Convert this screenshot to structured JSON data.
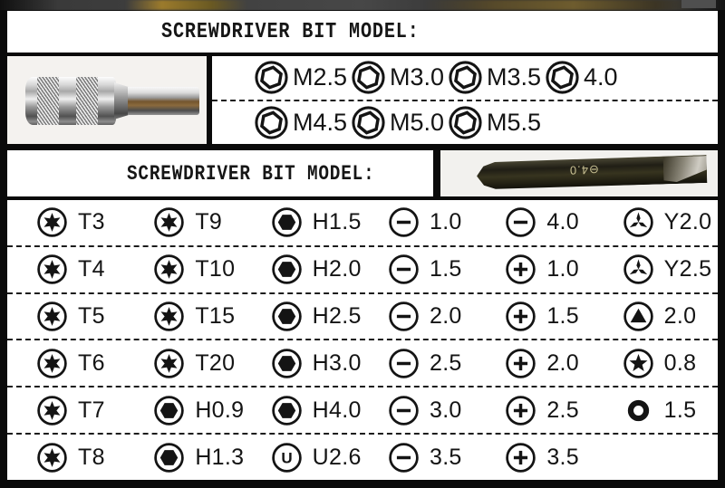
{
  "header_top": {
    "title": "SCREWDRIVER BIT MODEL:"
  },
  "hex_nut_panel": {
    "rows": [
      [
        {
          "icon": "hex-nut-icon",
          "label": "M2.5"
        },
        {
          "icon": "hex-nut-icon",
          "label": "M3.0"
        },
        {
          "icon": "hex-nut-icon",
          "label": "M3.5"
        },
        {
          "icon": "hex-nut-icon",
          "label": "4.0"
        }
      ],
      [
        {
          "icon": "hex-nut-icon",
          "label": "M4.5"
        },
        {
          "icon": "hex-nut-icon",
          "label": "M5.0"
        },
        {
          "icon": "hex-nut-icon",
          "label": "M5.5"
        }
      ]
    ]
  },
  "header_mid": {
    "title": "SCREWDRIVER BIT MODEL:"
  },
  "bit_photo": {
    "marking": "⊖4.0"
  },
  "bit_table": {
    "rows": [
      [
        {
          "icon": "torx-icon",
          "label": "T3"
        },
        {
          "icon": "torx-icon",
          "label": "T9"
        },
        {
          "icon": "hex-socket-icon",
          "label": "H1.5"
        },
        {
          "icon": "slotted-icon",
          "label": "1.0"
        },
        {
          "icon": "slotted-icon",
          "label": "4.0"
        },
        {
          "icon": "y-type-icon",
          "label": "Y2.0"
        }
      ],
      [
        {
          "icon": "torx-icon",
          "label": "T4"
        },
        {
          "icon": "torx-icon",
          "label": "T10"
        },
        {
          "icon": "hex-socket-icon",
          "label": "H2.0"
        },
        {
          "icon": "slotted-icon",
          "label": "1.5"
        },
        {
          "icon": "phillips-icon",
          "label": "1.0"
        },
        {
          "icon": "y-type-icon",
          "label": "Y2.5"
        }
      ],
      [
        {
          "icon": "torx-icon",
          "label": "T5"
        },
        {
          "icon": "torx-icon",
          "label": "T15"
        },
        {
          "icon": "hex-socket-icon",
          "label": "H2.5"
        },
        {
          "icon": "slotted-icon",
          "label": "2.0"
        },
        {
          "icon": "phillips-icon",
          "label": "1.5"
        },
        {
          "icon": "triangle-icon",
          "label": "2.0"
        }
      ],
      [
        {
          "icon": "torx-icon",
          "label": "T6"
        },
        {
          "icon": "torx-icon",
          "label": "T20"
        },
        {
          "icon": "hex-socket-icon",
          "label": "H3.0"
        },
        {
          "icon": "slotted-icon",
          "label": "2.5"
        },
        {
          "icon": "phillips-icon",
          "label": "2.0"
        },
        {
          "icon": "pentalobe-icon",
          "label": "0.8"
        }
      ],
      [
        {
          "icon": "torx-icon",
          "label": "T7"
        },
        {
          "icon": "hex-socket-icon",
          "label": "H0.9"
        },
        {
          "icon": "hex-socket-icon",
          "label": "H4.0"
        },
        {
          "icon": "slotted-icon",
          "label": "3.0"
        },
        {
          "icon": "phillips-icon",
          "label": "2.5"
        },
        {
          "icon": "ring-icon",
          "label": "1.5"
        }
      ],
      [
        {
          "icon": "torx-icon",
          "label": "T8"
        },
        {
          "icon": "hex-socket-icon",
          "label": "H1.3"
        },
        {
          "icon": "u-type-icon",
          "label": "U2.6"
        },
        {
          "icon": "slotted-icon",
          "label": "3.5"
        },
        {
          "icon": "phillips-icon",
          "label": "3.5"
        }
      ]
    ]
  },
  "colors": {
    "panel_bg": "#ffffff",
    "frame": "#0a0a0a",
    "ink": "#141414"
  }
}
